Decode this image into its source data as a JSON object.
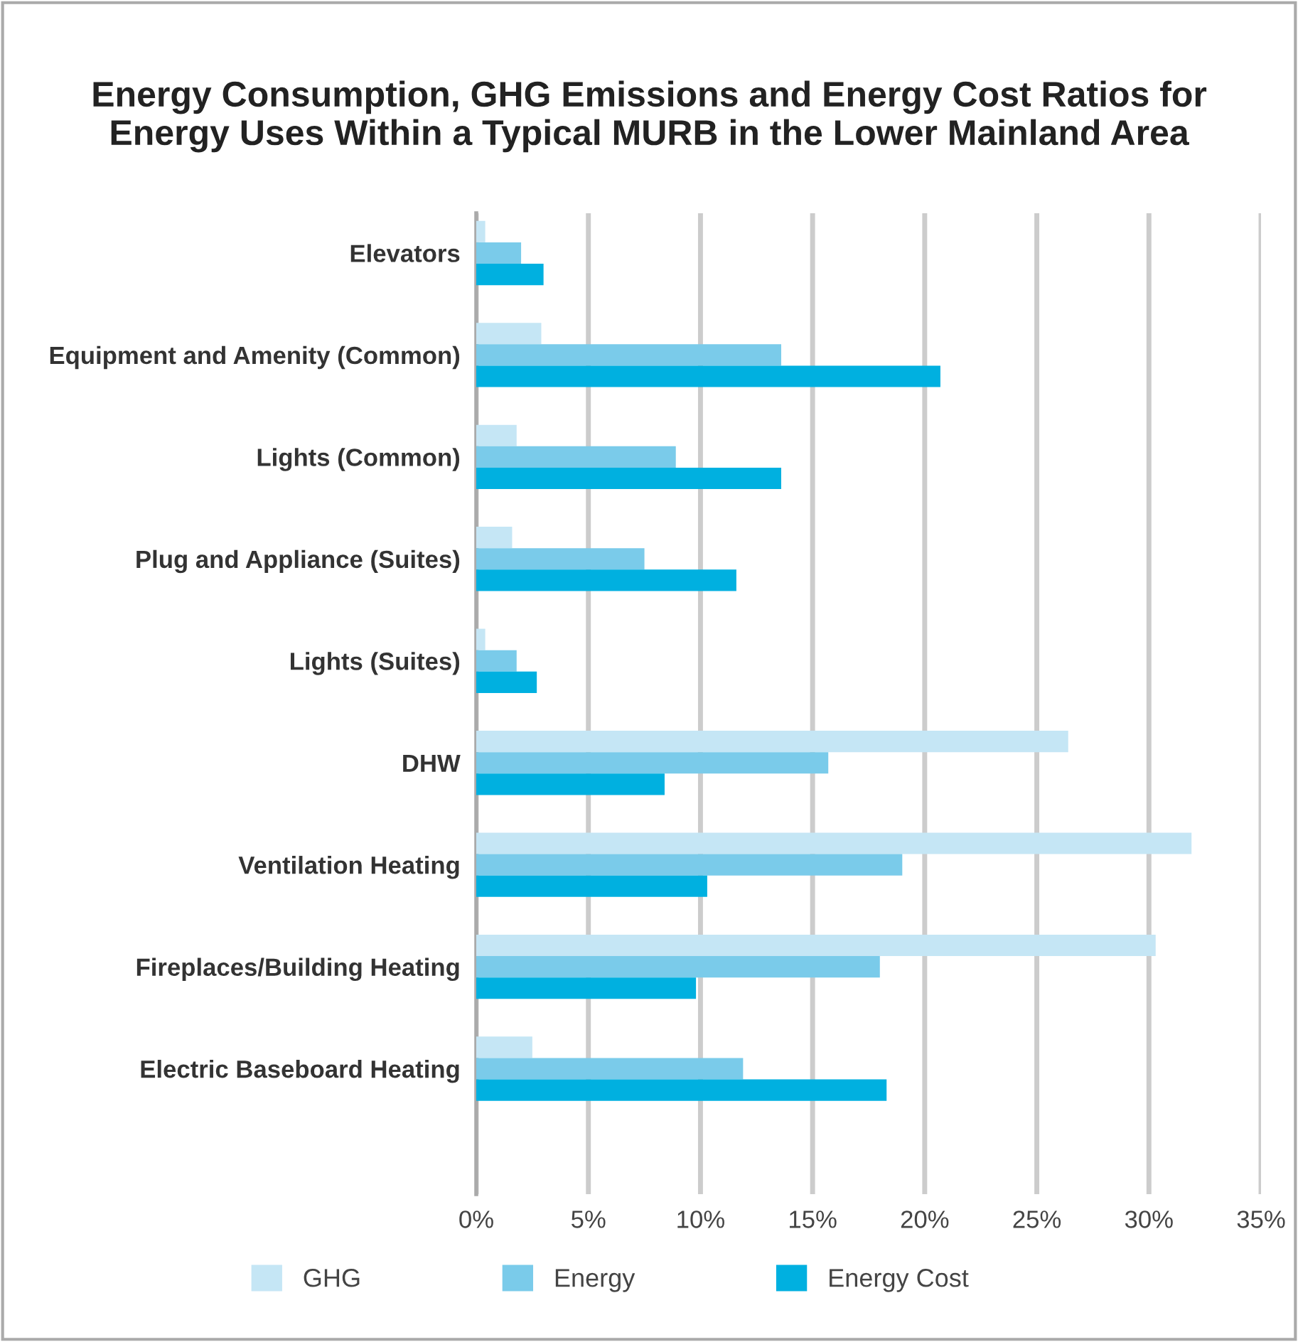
{
  "chart_data": {
    "type": "bar",
    "orientation": "horizontal",
    "title": "Energy Consumption, GHG Emissions and Energy Cost Ratios for\nEnergy Uses Within a Typical MURB in the Lower Mainland Area",
    "categories": [
      "Elevators",
      "Equipment and Amenity (Common)",
      "Lights (Common)",
      "Plug and Appliance (Suites)",
      "Lights (Suites)",
      "DHW",
      "Ventilation Heating",
      "Fireplaces/Building Heating",
      "Electric Baseboard Heating"
    ],
    "series": [
      {
        "name": "GHG",
        "color": "#c5e6f5",
        "values": [
          0.4,
          2.9,
          1.8,
          1.6,
          0.4,
          26.4,
          31.9,
          30.3,
          2.5
        ]
      },
      {
        "name": "Energy",
        "color": "#7acbea",
        "values": [
          2.0,
          13.6,
          8.9,
          7.5,
          1.8,
          15.7,
          19.0,
          18.0,
          11.9
        ]
      },
      {
        "name": "Energy Cost",
        "color": "#00b0e0",
        "values": [
          3.0,
          20.7,
          13.6,
          11.6,
          2.7,
          8.4,
          10.3,
          9.8,
          18.3
        ]
      }
    ],
    "xlim": [
      0,
      35
    ],
    "xticks": [
      {
        "value": 0,
        "label": "0%"
      },
      {
        "value": 5,
        "label": "5%"
      },
      {
        "value": 10,
        "label": "10%"
      },
      {
        "value": 15,
        "label": "15%"
      },
      {
        "value": 20,
        "label": "20%"
      },
      {
        "value": 25,
        "label": "25%"
      },
      {
        "value": 30,
        "label": "30%"
      },
      {
        "value": 35,
        "label": "35%"
      }
    ],
    "grid": "x",
    "legend": "bottom"
  }
}
